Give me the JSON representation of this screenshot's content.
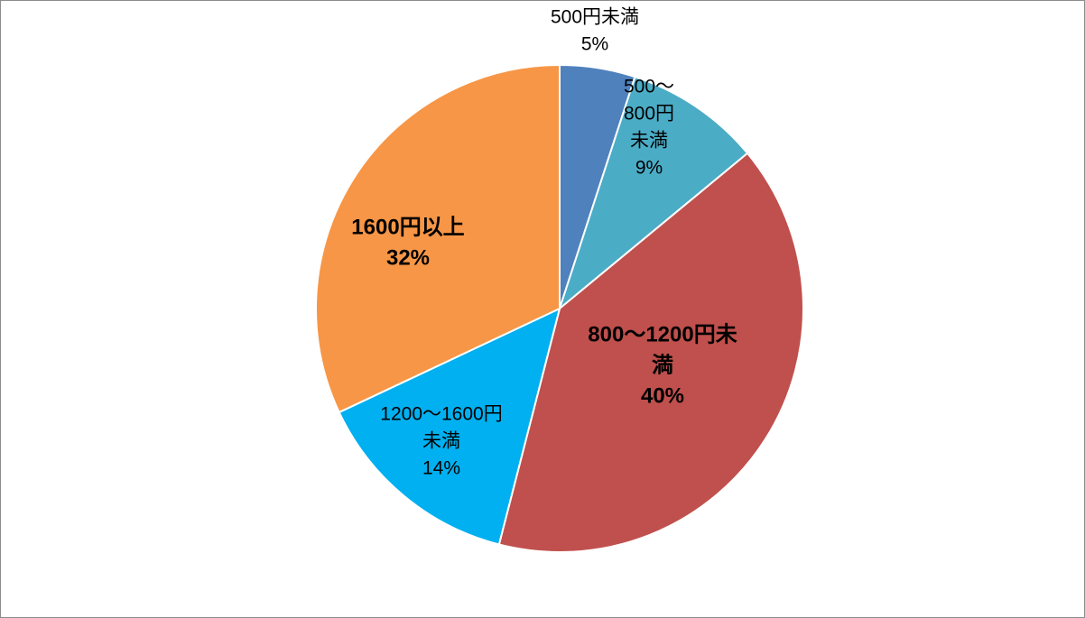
{
  "chart_data": {
    "type": "pie",
    "title": "",
    "slices": [
      {
        "label": "500円未満",
        "percent_label": "5%",
        "value": 5,
        "color": "#4f81bd",
        "label_lines": [
          "500円未満",
          "5%"
        ],
        "bold": false
      },
      {
        "label": "500～800円未満",
        "percent_label": "9%",
        "value": 9,
        "color": "#4bacc6",
        "label_lines": [
          "500～",
          "800円",
          "未満",
          "9%"
        ],
        "bold": false
      },
      {
        "label": "800～1200円未満",
        "percent_label": "40%",
        "value": 40,
        "color": "#c0504d",
        "label_lines": [
          "800～1200円未",
          "満",
          "40%"
        ],
        "bold": true
      },
      {
        "label": "1200～1600円未満",
        "percent_label": "14%",
        "value": 14,
        "color": "#00b0f0",
        "label_lines": [
          "1200～1600円",
          "未満",
          "14%"
        ],
        "bold": false
      },
      {
        "label": "1600円以上",
        "percent_label": "32%",
        "value": 32,
        "color": "#f79646",
        "label_lines": [
          "1600円以上",
          "32%"
        ],
        "bold": true
      }
    ],
    "start_angle": "12 o'clock",
    "direction": "clockwise",
    "legend": "none"
  }
}
